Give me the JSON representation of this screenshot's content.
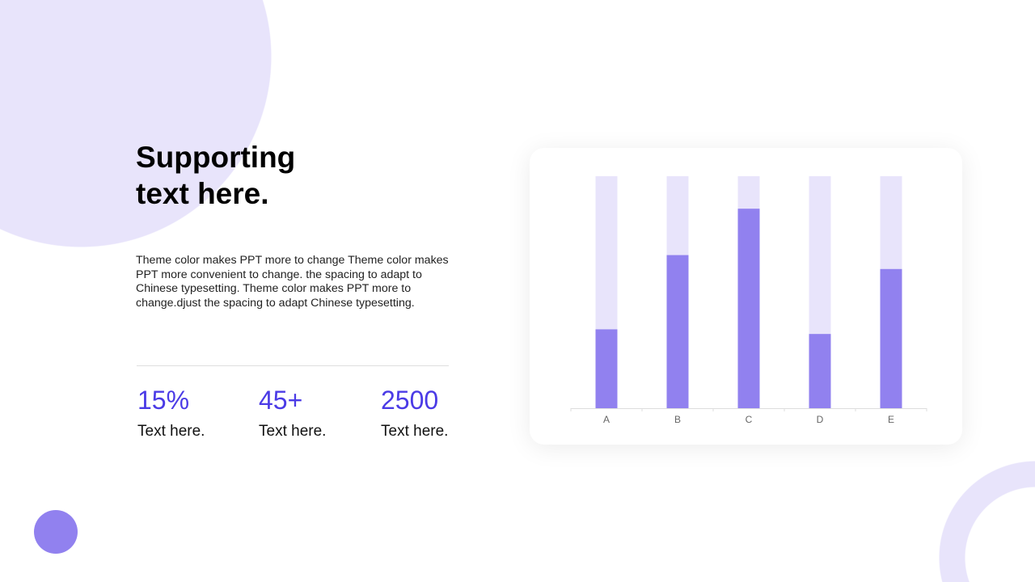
{
  "slide": {
    "title": "Supporting\ntext here.",
    "body": "Theme color makes PPT more to change Theme color makes PPT more convenient to change. the spacing to adapt to Chinese typesetting. Theme color makes PPT more to change.djust the spacing to adapt Chinese typesetting.",
    "stats": [
      {
        "value": "15%",
        "label": "Text here."
      },
      {
        "value": "45+",
        "label": "Text here."
      },
      {
        "value": "2500",
        "label": "Text here."
      }
    ]
  },
  "colors": {
    "accent": "#4b3be6",
    "bar": "#9181ef",
    "bar_track": "#e8e4fb"
  },
  "chart_data": {
    "type": "bar",
    "categories": [
      "A",
      "B",
      "C",
      "D",
      "E"
    ],
    "values": [
      34,
      66,
      86,
      32,
      60
    ],
    "track_value": 100,
    "ylim": [
      0,
      100
    ],
    "grid": false,
    "legend": "none"
  }
}
